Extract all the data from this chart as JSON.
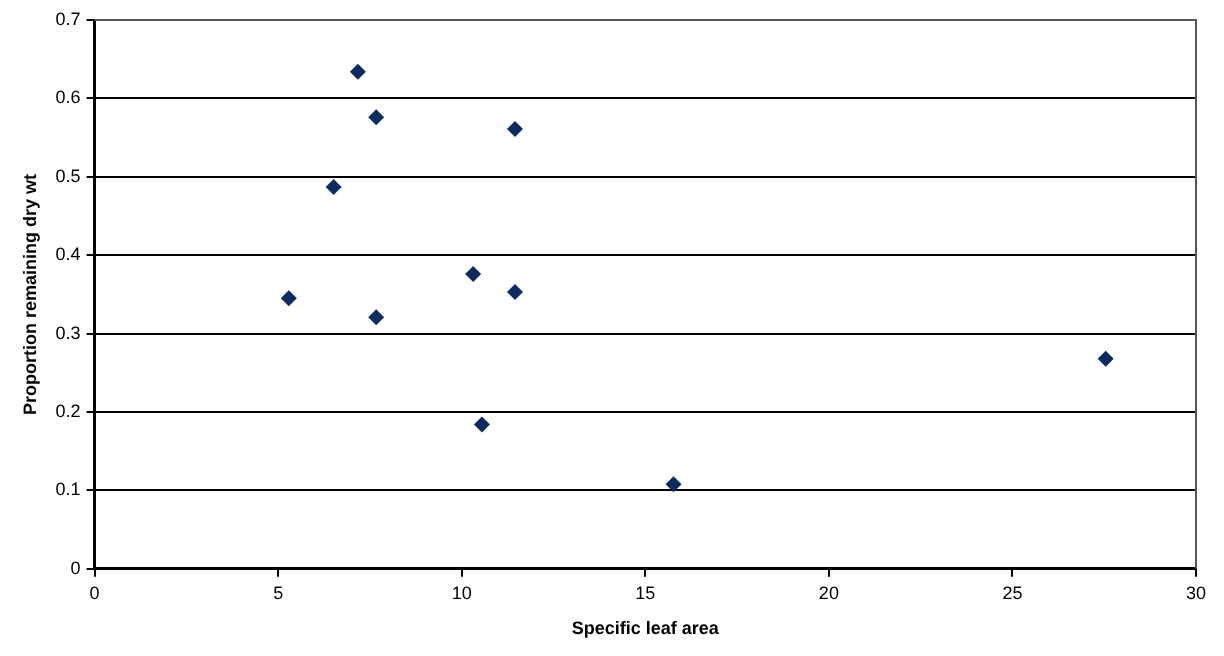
{
  "chart_data": {
    "type": "scatter",
    "xlabel": "Specific leaf area",
    "ylabel": "Proportion remaining dry wt",
    "x": [
      7.17,
      7.67,
      11.45,
      6.51,
      10.31,
      11.45,
      5.29,
      7.67,
      10.55,
      15.77,
      27.54
    ],
    "values": [
      0.634,
      0.576,
      0.561,
      0.487,
      0.376,
      0.353,
      0.345,
      0.321,
      0.184,
      0.108,
      0.268
    ],
    "color": "#0d2b5e",
    "marker": "diamond",
    "xlim": [
      0,
      30
    ],
    "xticks": [
      0,
      5,
      10,
      15,
      20,
      25,
      30
    ],
    "ylim": [
      0,
      0.7
    ],
    "yticks": [
      0,
      0.1,
      0.2,
      0.3,
      0.4,
      0.5,
      0.6,
      0.7
    ],
    "grid": "y",
    "legend": false
  }
}
